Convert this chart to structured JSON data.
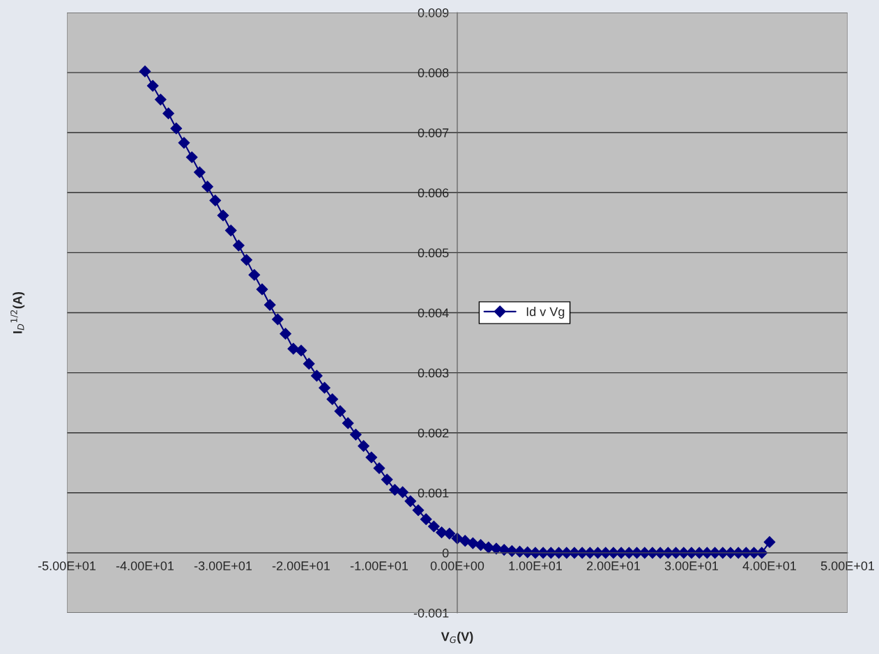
{
  "chart_data": {
    "type": "line",
    "xlabel": "V$_{G}$(V)",
    "ylabel": "I$_{D}$$^{1/2}$(A)",
    "x": [
      -40,
      -39,
      -38,
      -37,
      -36,
      -35,
      -34,
      -33,
      -32,
      -31,
      -30,
      -29,
      -28,
      -27,
      -26,
      -25,
      -24,
      -23,
      -22,
      -21,
      -20,
      -19,
      -18,
      -17,
      -16,
      -15,
      -14,
      -13,
      -12,
      -11,
      -10,
      -9,
      -8,
      -7,
      -6,
      -5,
      -4,
      -3,
      -2,
      -1,
      0,
      1,
      2,
      3,
      4,
      5,
      6,
      7,
      8,
      9,
      10,
      11,
      12,
      13,
      14,
      15,
      16,
      17,
      18,
      19,
      20,
      21,
      22,
      23,
      24,
      25,
      26,
      27,
      28,
      29,
      30,
      31,
      32,
      33,
      34,
      35,
      36,
      37,
      38,
      39,
      40
    ],
    "series": [
      {
        "name": "Id v Vg",
        "color": "#000080",
        "values": [
          0.00802,
          0.00778,
          0.00755,
          0.00732,
          0.00707,
          0.00683,
          0.00659,
          0.00634,
          0.0061,
          0.00587,
          0.00562,
          0.00537,
          0.00512,
          0.00488,
          0.00463,
          0.00439,
          0.00413,
          0.00389,
          0.00365,
          0.0034,
          0.00337,
          0.00315,
          0.00295,
          0.00275,
          0.00256,
          0.00236,
          0.00216,
          0.00197,
          0.00178,
          0.00159,
          0.00141,
          0.00122,
          0.00105,
          0.00101,
          0.00086,
          0.00071,
          0.00056,
          0.00044,
          0.00034,
          0.00032,
          0.00024,
          0.0002,
          0.00016,
          0.00013,
          9e-05,
          7e-05,
          5e-05,
          3e-05,
          2e-05,
          1e-05,
          0,
          0,
          0,
          0,
          0,
          0,
          0,
          0,
          0,
          0,
          0,
          0,
          0,
          0,
          0,
          0,
          0,
          0,
          0,
          0,
          0,
          0,
          0,
          0,
          0,
          0,
          0,
          0,
          0,
          0,
          0.00018
        ]
      }
    ],
    "xlim": [
      -50,
      50
    ],
    "xticks": [
      {
        "value": -50,
        "label": "-5.00E+01"
      },
      {
        "value": -40,
        "label": "-4.00E+01"
      },
      {
        "value": -30,
        "label": "-3.00E+01"
      },
      {
        "value": -20,
        "label": "-2.00E+01"
      },
      {
        "value": -10,
        "label": "-1.00E+01"
      },
      {
        "value": 0,
        "label": "0.00E+00"
      },
      {
        "value": 10,
        "label": "1.00E+01"
      },
      {
        "value": 20,
        "label": "2.00E+01"
      },
      {
        "value": 30,
        "label": "3.00E+01"
      },
      {
        "value": 40,
        "label": "4.00E+01"
      },
      {
        "value": 50,
        "label": "5.00E+01"
      }
    ],
    "ylim": [
      -0.001,
      0.009
    ],
    "yticks": [
      -0.001,
      0,
      0.001,
      0.002,
      0.003,
      0.004,
      0.005,
      0.006,
      0.007,
      0.008,
      0.009
    ],
    "grid": "y",
    "legend": "center",
    "marker": "diamond",
    "line_style": "solid"
  }
}
